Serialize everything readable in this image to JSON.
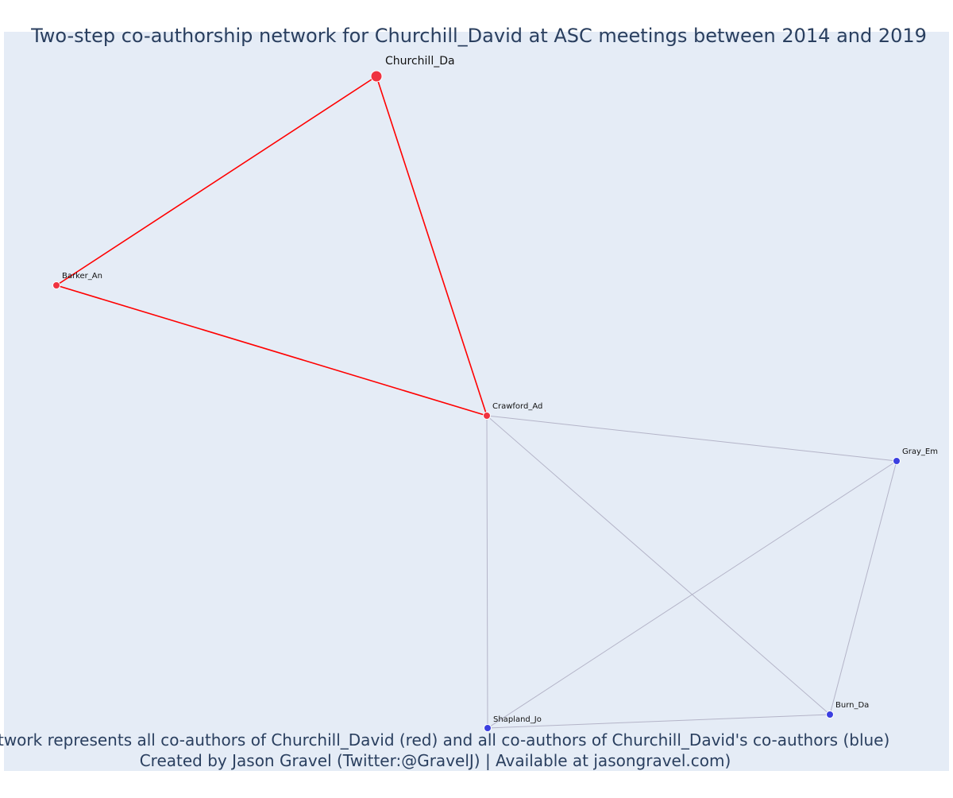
{
  "title": "Two-step co-authorship network for Churchill_David at ASC meetings between 2014 and 2019",
  "footer": {
    "line1": "Network represents all co-authors of Churchill_David (red) and all co-authors of Churchill_David's co-authors (blue)",
    "line2": "Created by Jason Gravel (Twitter:@GravelJ) | Available at jasongravel.com)"
  },
  "colors": {
    "plot_bg": "#e5ecf6",
    "page_bg": "#ffffff",
    "title": "#2a3f5f",
    "focal_node": "#ef3340",
    "coauthor_node": "#ef3340",
    "second_step_node": "#3b3fe0",
    "focal_edge": "#ff0000",
    "other_edge": "#b4b4c8",
    "label": "#111111"
  },
  "nodes": [
    {
      "id": "churchill",
      "label": "Churchill_Da",
      "group": "focal"
    },
    {
      "id": "barker",
      "label": "Barker_An",
      "group": "coauthor"
    },
    {
      "id": "crawford",
      "label": "Crawford_Ad",
      "group": "coauthor"
    },
    {
      "id": "gray",
      "label": "Gray_Em",
      "group": "second_step"
    },
    {
      "id": "burn",
      "label": "Burn_Da",
      "group": "second_step"
    },
    {
      "id": "shapland",
      "label": "Shapland_Jo",
      "group": "second_step"
    }
  ],
  "edges": [
    {
      "source": "churchill",
      "target": "barker",
      "type": "focal"
    },
    {
      "source": "churchill",
      "target": "crawford",
      "type": "focal"
    },
    {
      "source": "barker",
      "target": "crawford",
      "type": "focal"
    },
    {
      "source": "crawford",
      "target": "gray",
      "type": "other"
    },
    {
      "source": "crawford",
      "target": "burn",
      "type": "other"
    },
    {
      "source": "crawford",
      "target": "shapland",
      "type": "other"
    },
    {
      "source": "gray",
      "target": "shapland",
      "type": "other"
    },
    {
      "source": "gray",
      "target": "burn",
      "type": "other"
    },
    {
      "source": "shapland",
      "target": "burn",
      "type": "other"
    }
  ]
}
